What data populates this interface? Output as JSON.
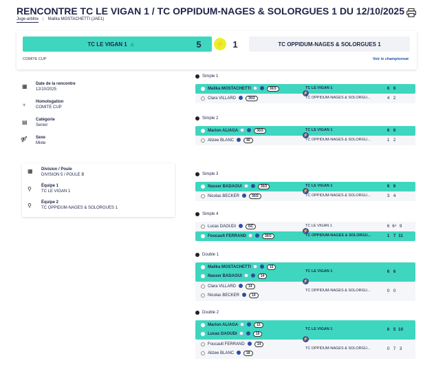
{
  "header": {
    "title": "RENCONTRE TC LE VIGAN 1 / TC OPPIDUM-NAGES & SOLORGUES 1 DU 12/10/2025",
    "judge_label": "Juge-arbitre",
    "judge_name": "Malika MOSTACHETTI (JAE1)"
  },
  "score": {
    "home_team": "TC LE VIGAN 1",
    "home_score": "5",
    "away_score": "1",
    "away_team": "TC OPPIDUM-NAGES & SOLORGUES 1",
    "competition": "COMITE CUP",
    "championship_link": "Voir le championnat"
  },
  "info": {
    "date_label": "Date de la rencontre",
    "date_value": "12/10/2025",
    "homologation_label": "Homologation",
    "homologation_value": "COMITE CUP",
    "category_label": "Catégorie",
    "category_value": "Senior",
    "sex_label": "Sexe",
    "sex_value": "Mixte",
    "division_label": "Division / Poule",
    "division_value": "DIVISION 5 / POULE B",
    "team1_label": "Équipe 1",
    "team1_value": "TC LE VIGAN 1",
    "team2_label": "Équipe 2",
    "team2_value": "TC OPPIDUM-NAGES & SOLORGUES 1"
  },
  "matches": [
    {
      "title": "Simple 1",
      "home": [
        {
          "name": "Malika MOSTACHETTI",
          "rank": "30/3"
        }
      ],
      "home_club": "TC LE VIGAN 1",
      "home_scores": [
        "6",
        "6",
        ""
      ],
      "away": [
        {
          "name": "Clara VILLARD",
          "rank": "30/2"
        }
      ],
      "away_club": "TC OPPIDUM-NAGES & SOLORGU...",
      "away_scores": [
        "4",
        "2",
        ""
      ]
    },
    {
      "title": "Simple 2",
      "home": [
        {
          "name": "Marion ALIAGA",
          "rank": "30/3"
        }
      ],
      "home_club": "TC LE VIGAN 1",
      "home_scores": [
        "6",
        "6",
        ""
      ],
      "away": [
        {
          "name": "Alizee BLANC",
          "rank": "40"
        }
      ],
      "away_club": "TC OPPIDUM-NAGES & SOLORGU...",
      "away_scores": [
        "1",
        "2",
        ""
      ]
    },
    {
      "title": "Simple 3",
      "home": [
        {
          "name": "Nasser BADAOUI",
          "rank": "30/2"
        }
      ],
      "home_club": "TC LE VIGAN 1",
      "home_scores": [
        "6",
        "6",
        ""
      ],
      "away": [
        {
          "name": "Nicolas BECKER",
          "rank": "30/2"
        }
      ],
      "away_club": "TC OPPIDUM-NAGES & SOLORGU...",
      "away_scores": [
        "3",
        "4",
        ""
      ]
    },
    {
      "title": "Simple 4",
      "home": [
        {
          "name": "Lucas DAOUDI",
          "rank": "NC"
        }
      ],
      "home_club": "TC LE VIGAN 1",
      "home_scores": [
        "6",
        "6⁴",
        "9"
      ],
      "away": [
        {
          "name": "Foucault FERRAND",
          "rank": "30/2"
        }
      ],
      "away_club": "TC OPPIDUM-NAGES & SOLORGU...",
      "away_scores": [
        "1",
        "7",
        "11"
      ]
    },
    {
      "title": "Double 1",
      "home": [
        {
          "name": "Malika MOSTACHETTI",
          "rank": "15"
        },
        {
          "name": "Nasser BADAOUI",
          "rank": "14"
        }
      ],
      "home_club": "TC LE VIGAN 1",
      "home_scores": [
        "6",
        "6",
        ""
      ],
      "away": [
        {
          "name": "Clara VILLARD",
          "rank": "14"
        },
        {
          "name": "Nicolas BECKER",
          "rank": "14"
        }
      ],
      "away_club": "TC OPPIDUM-NAGES & SOLORGU...",
      "away_scores": [
        "0",
        "0",
        ""
      ]
    },
    {
      "title": "Double 2",
      "home": [
        {
          "name": "Marion ALIAGA",
          "rank": "15"
        },
        {
          "name": "Lucas DAOUDI",
          "rank": "19"
        }
      ],
      "home_club": "TC LE VIGAN 1",
      "home_scores": [
        "6",
        "5",
        "10"
      ],
      "away": [
        {
          "name": "Foucault FERRAND",
          "rank": "14"
        },
        {
          "name": "Alizee BLANC",
          "rank": "18"
        }
      ],
      "away_club": "TC OPPIDUM-NAGES & SOLORGU...",
      "away_scores": [
        "0",
        "7",
        "3"
      ]
    }
  ]
}
